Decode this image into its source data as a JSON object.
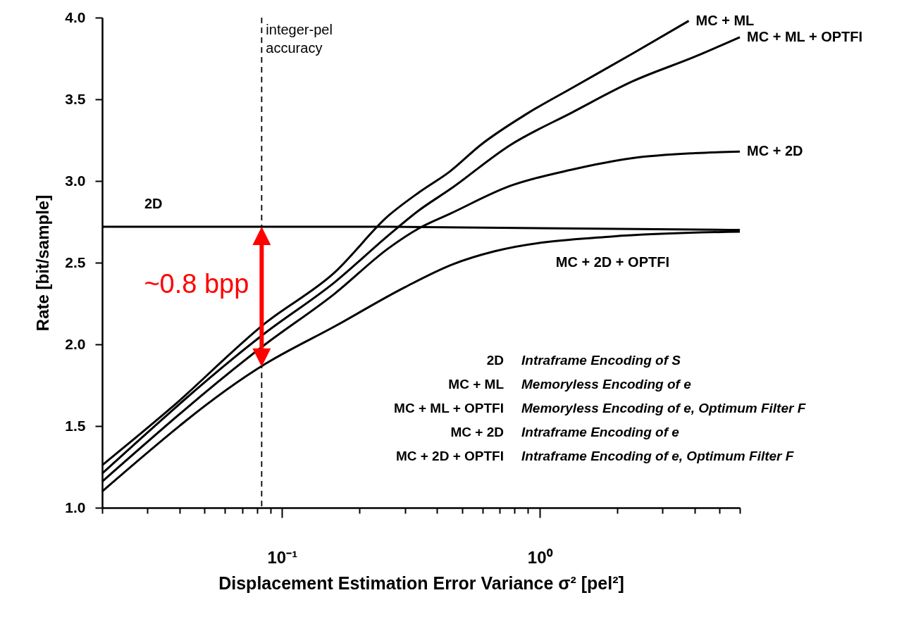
{
  "chart_data": {
    "type": "line",
    "xlabel": "Displacement Estimation Error Variance σ² [pel²]",
    "ylabel": "Rate [bit/sample]",
    "log": "x",
    "grid": false,
    "legend": false,
    "line_style": "solid",
    "xlim": [
      0.02,
      6
    ],
    "ylim": [
      1.0,
      4.0
    ],
    "xticks": [
      {
        "value": 0.02,
        "label": null
      },
      {
        "value": 0.03,
        "label": null
      },
      {
        "value": 0.04,
        "label": null
      },
      {
        "value": 0.05,
        "label": null
      },
      {
        "value": 0.06,
        "label": null
      },
      {
        "value": 0.07,
        "label": null
      },
      {
        "value": 0.08,
        "label": null
      },
      {
        "value": 0.09,
        "label": null
      },
      {
        "value": 0.1,
        "label": "10⁻¹"
      },
      {
        "value": 0.2,
        "label": null
      },
      {
        "value": 0.3,
        "label": null
      },
      {
        "value": 0.4,
        "label": null
      },
      {
        "value": 0.5,
        "label": null
      },
      {
        "value": 0.6,
        "label": null
      },
      {
        "value": 0.7,
        "label": null
      },
      {
        "value": 0.8,
        "label": null
      },
      {
        "value": 0.9,
        "label": null
      },
      {
        "value": 1,
        "label": "10⁰"
      },
      {
        "value": 2,
        "label": null
      },
      {
        "value": 3,
        "label": null
      },
      {
        "value": 4,
        "label": null
      },
      {
        "value": 5,
        "label": null
      },
      {
        "value": 6,
        "label": null
      }
    ],
    "yticks": [
      {
        "value": 1,
        "label": "1.0"
      },
      1.5,
      {
        "value": 2,
        "label": "2.0"
      },
      2.5,
      {
        "value": 3,
        "label": "3.0"
      },
      3.5,
      {
        "value": 4,
        "label": "4.0"
      }
    ],
    "series": [
      {
        "name": "2D",
        "color": "#000000",
        "x": [
          0.02,
          0.26,
          6
        ],
        "values": [
          2.72,
          2.72,
          2.7
        ]
      },
      {
        "name": "MC + ML",
        "color": "#000000",
        "x": [
          0.02,
          0.037,
          0.086,
          0.16,
          0.26,
          0.34,
          0.45,
          0.59,
          0.89,
          1.34,
          2.3,
          3.8
        ],
        "values": [
          1.26,
          1.61,
          2.13,
          2.44,
          2.79,
          2.93,
          3.06,
          3.22,
          3.41,
          3.57,
          3.78,
          3.98
        ]
      },
      {
        "name": "MC + ML + OPTFI",
        "color": "#000000",
        "x": [
          0.02,
          0.086,
          0.16,
          0.26,
          0.34,
          0.45,
          0.77,
          1.34,
          2.3,
          4.0,
          6
        ],
        "values": [
          1.21,
          2.07,
          2.38,
          2.67,
          2.82,
          2.95,
          3.22,
          3.42,
          3.61,
          3.76,
          3.88
        ]
      },
      {
        "name": "MC + 2D",
        "color": "#000000",
        "x": [
          0.02,
          0.086,
          0.16,
          0.26,
          0.34,
          0.45,
          0.77,
          1.34,
          2.3,
          4.0,
          6
        ],
        "values": [
          1.16,
          2.0,
          2.31,
          2.59,
          2.71,
          2.8,
          2.97,
          3.07,
          3.14,
          3.17,
          3.18
        ]
      },
      {
        "name": "MC + 2D +  OPTFI",
        "color": "#000000",
        "x": [
          0.02,
          0.086,
          0.16,
          0.3,
          0.46,
          0.67,
          1.9,
          6
        ],
        "values": [
          1.1,
          1.88,
          2.11,
          2.35,
          2.49,
          2.57,
          2.66,
          2.69
        ]
      }
    ],
    "ref_lines": [
      {
        "axis": "x",
        "value": 0.0833,
        "label": "integer-pel accuracy",
        "line_style": "dashed",
        "color": "#000000"
      }
    ],
    "annotations": [
      {
        "text": "~0.8 bpp",
        "x": 0.0833,
        "y": 2.36
      },
      "2D",
      "Intraframe Encoding of S",
      "MC + ML",
      "Memoryless Encoding of e",
      "MC + ML + OPTFI",
      "Memoryless Encoding of e, Optimum Filter F",
      "MC + 2D",
      "Intraframe Encoding of e",
      "MC + 2D +  OPTFI",
      "Intraframe Encoding of e, Optimum Filter F"
    ]
  }
}
